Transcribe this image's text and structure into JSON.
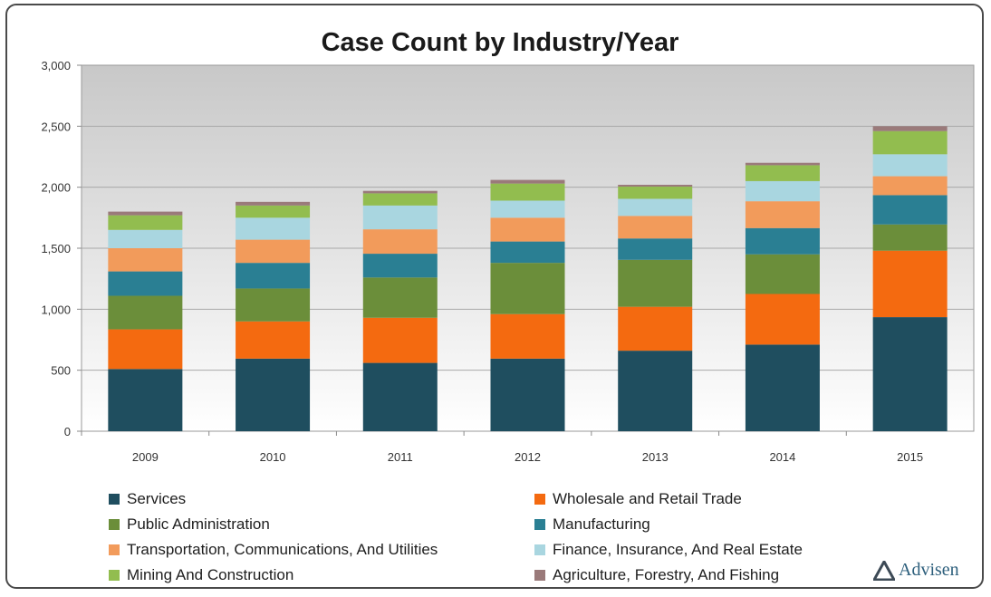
{
  "chart_data": {
    "type": "bar",
    "stacked": true,
    "title": "Case Count by Industry/Year",
    "xlabel": "",
    "ylabel": "",
    "ylim": [
      0,
      3000
    ],
    "yticks": [
      "0",
      "500",
      "1,000",
      "1,500",
      "2,000",
      "2,500",
      "3,000"
    ],
    "ytick_values": [
      0,
      500,
      1000,
      1500,
      2000,
      2500,
      3000
    ],
    "grid": true,
    "legend_position": "bottom",
    "categories": [
      "2009",
      "2010",
      "2011",
      "2012",
      "2013",
      "2014",
      "2015"
    ],
    "series": [
      {
        "name": "Services",
        "color": "#1f4e5f",
        "values": [
          510,
          595,
          560,
          595,
          660,
          710,
          935
        ]
      },
      {
        "name": "Wholesale and Retail Trade",
        "color": "#f46a10",
        "values": [
          325,
          305,
          370,
          365,
          360,
          415,
          545
        ]
      },
      {
        "name": "Public Administration",
        "color": "#6b8e3a",
        "values": [
          275,
          270,
          330,
          420,
          385,
          325,
          215
        ]
      },
      {
        "name": "Manufacturing",
        "color": "#2a7f93",
        "values": [
          200,
          210,
          195,
          175,
          175,
          215,
          240
        ]
      },
      {
        "name": "Transportation, Communications, And Utilities",
        "color": "#f29b5b",
        "values": [
          190,
          190,
          200,
          195,
          185,
          220,
          155
        ]
      },
      {
        "name": "Finance, Insurance, And Real Estate",
        "color": "#a9d6e0",
        "values": [
          150,
          180,
          195,
          140,
          140,
          165,
          180
        ]
      },
      {
        "name": "Mining And Construction",
        "color": "#92bd4f",
        "values": [
          120,
          100,
          100,
          140,
          100,
          130,
          190
        ]
      },
      {
        "name": "Agriculture, Forestry, And Fishing",
        "color": "#9a7a7a",
        "values": [
          30,
          30,
          20,
          30,
          15,
          20,
          40
        ]
      }
    ]
  },
  "legend_order": [
    0,
    1,
    2,
    3,
    4,
    5,
    6,
    7
  ],
  "brand": {
    "name": "Advisen",
    "logo_icon": "triangle-logo-icon"
  }
}
